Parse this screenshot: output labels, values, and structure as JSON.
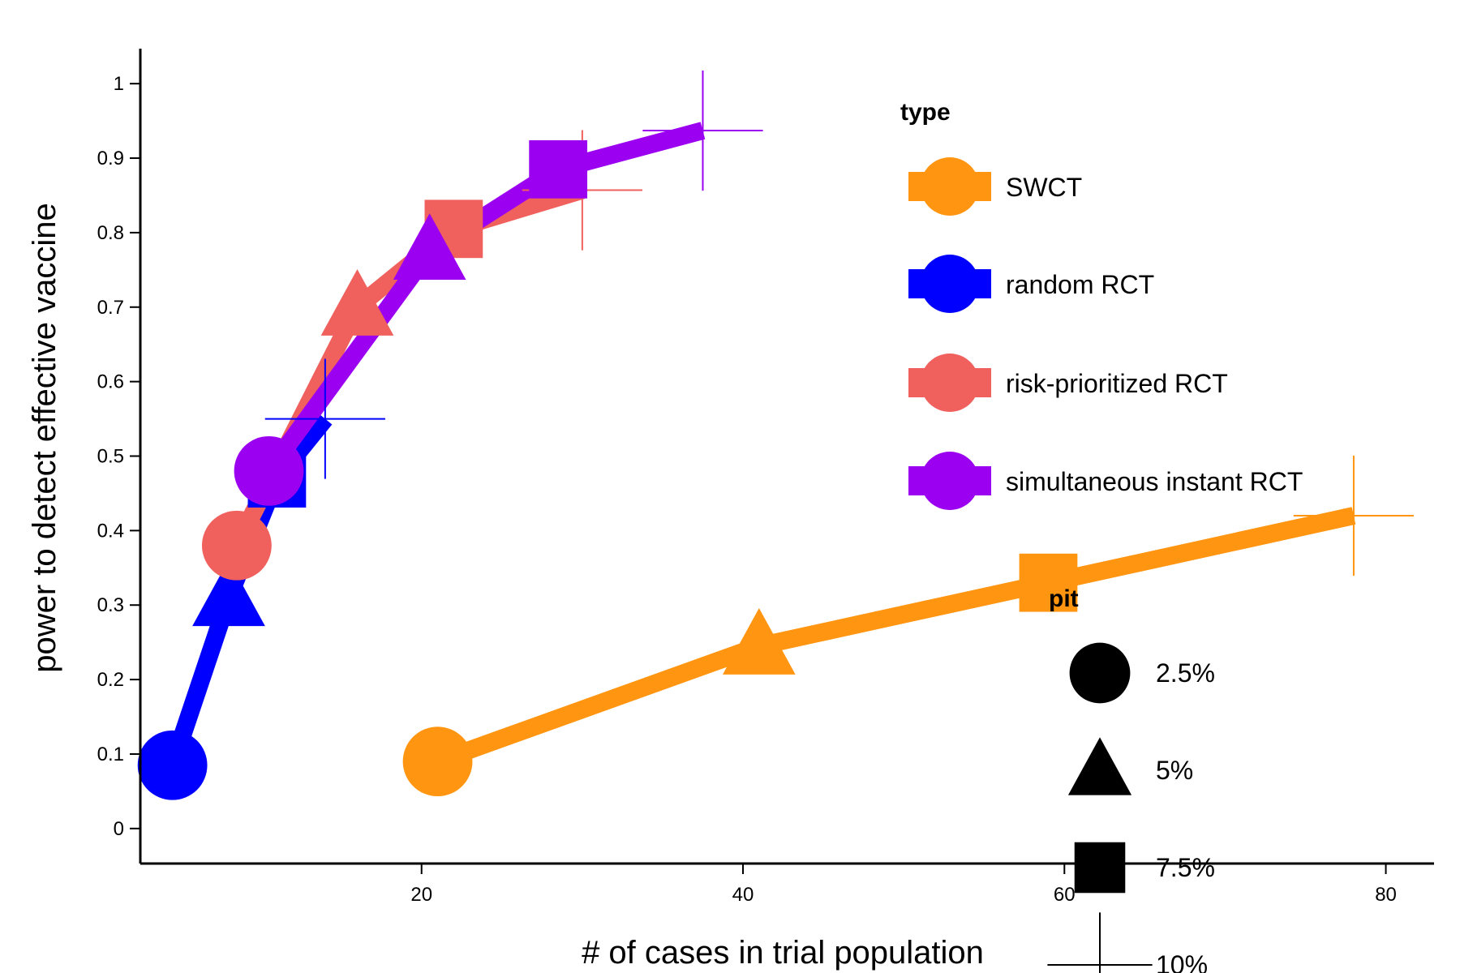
{
  "chart_data": {
    "type": "line",
    "xlabel": "# of cases in trial population",
    "ylabel": "power to detect effective vaccine",
    "xlim": [
      2.5,
      83
    ],
    "ylim": [
      -0.047,
      1.047
    ],
    "x_ticks": [
      20,
      40,
      60,
      80
    ],
    "y_ticks": [
      0,
      0.1,
      0.2,
      0.3,
      0.4,
      0.5,
      0.6,
      0.7,
      0.8,
      0.9,
      1
    ],
    "y_tick_labels": [
      "0",
      "0.1",
      "0.2",
      "0.3",
      "0.4",
      "0.5",
      "0.6",
      "0.7",
      "0.8",
      "0.9",
      "1"
    ],
    "grid": false,
    "legend_placement": "right",
    "legend_type_title": "type",
    "legend_pit_title": "pit",
    "pit_levels": [
      "2.5%",
      "5%",
      "7.5%",
      "10%"
    ],
    "pit_shapes": [
      "circle",
      "triangle",
      "square",
      "cross"
    ],
    "series": [
      {
        "name": "SWCT",
        "color": "#FF9510",
        "points": [
          {
            "x": 21,
            "y": 0.09
          },
          {
            "x": 41,
            "y": 0.245
          },
          {
            "x": 59,
            "y": 0.33
          },
          {
            "x": 78,
            "y": 0.42
          }
        ]
      },
      {
        "name": "random RCT",
        "color": "#0000FF",
        "points": [
          {
            "x": 4.5,
            "y": 0.085
          },
          {
            "x": 8,
            "y": 0.31
          },
          {
            "x": 11,
            "y": 0.47
          },
          {
            "x": 14,
            "y": 0.55
          }
        ]
      },
      {
        "name": "risk-prioritized RCT",
        "color": "#F0605D",
        "points": [
          {
            "x": 8.5,
            "y": 0.38
          },
          {
            "x": 16,
            "y": 0.7
          },
          {
            "x": 22,
            "y": 0.805
          },
          {
            "x": 30,
            "y": 0.857
          }
        ]
      },
      {
        "name": "simultaneous instant RCT",
        "color": "#9B00F0",
        "points": [
          {
            "x": 10.5,
            "y": 0.48
          },
          {
            "x": 20.5,
            "y": 0.775
          },
          {
            "x": 28.5,
            "y": 0.885
          },
          {
            "x": 37.5,
            "y": 0.937
          }
        ]
      }
    ]
  }
}
